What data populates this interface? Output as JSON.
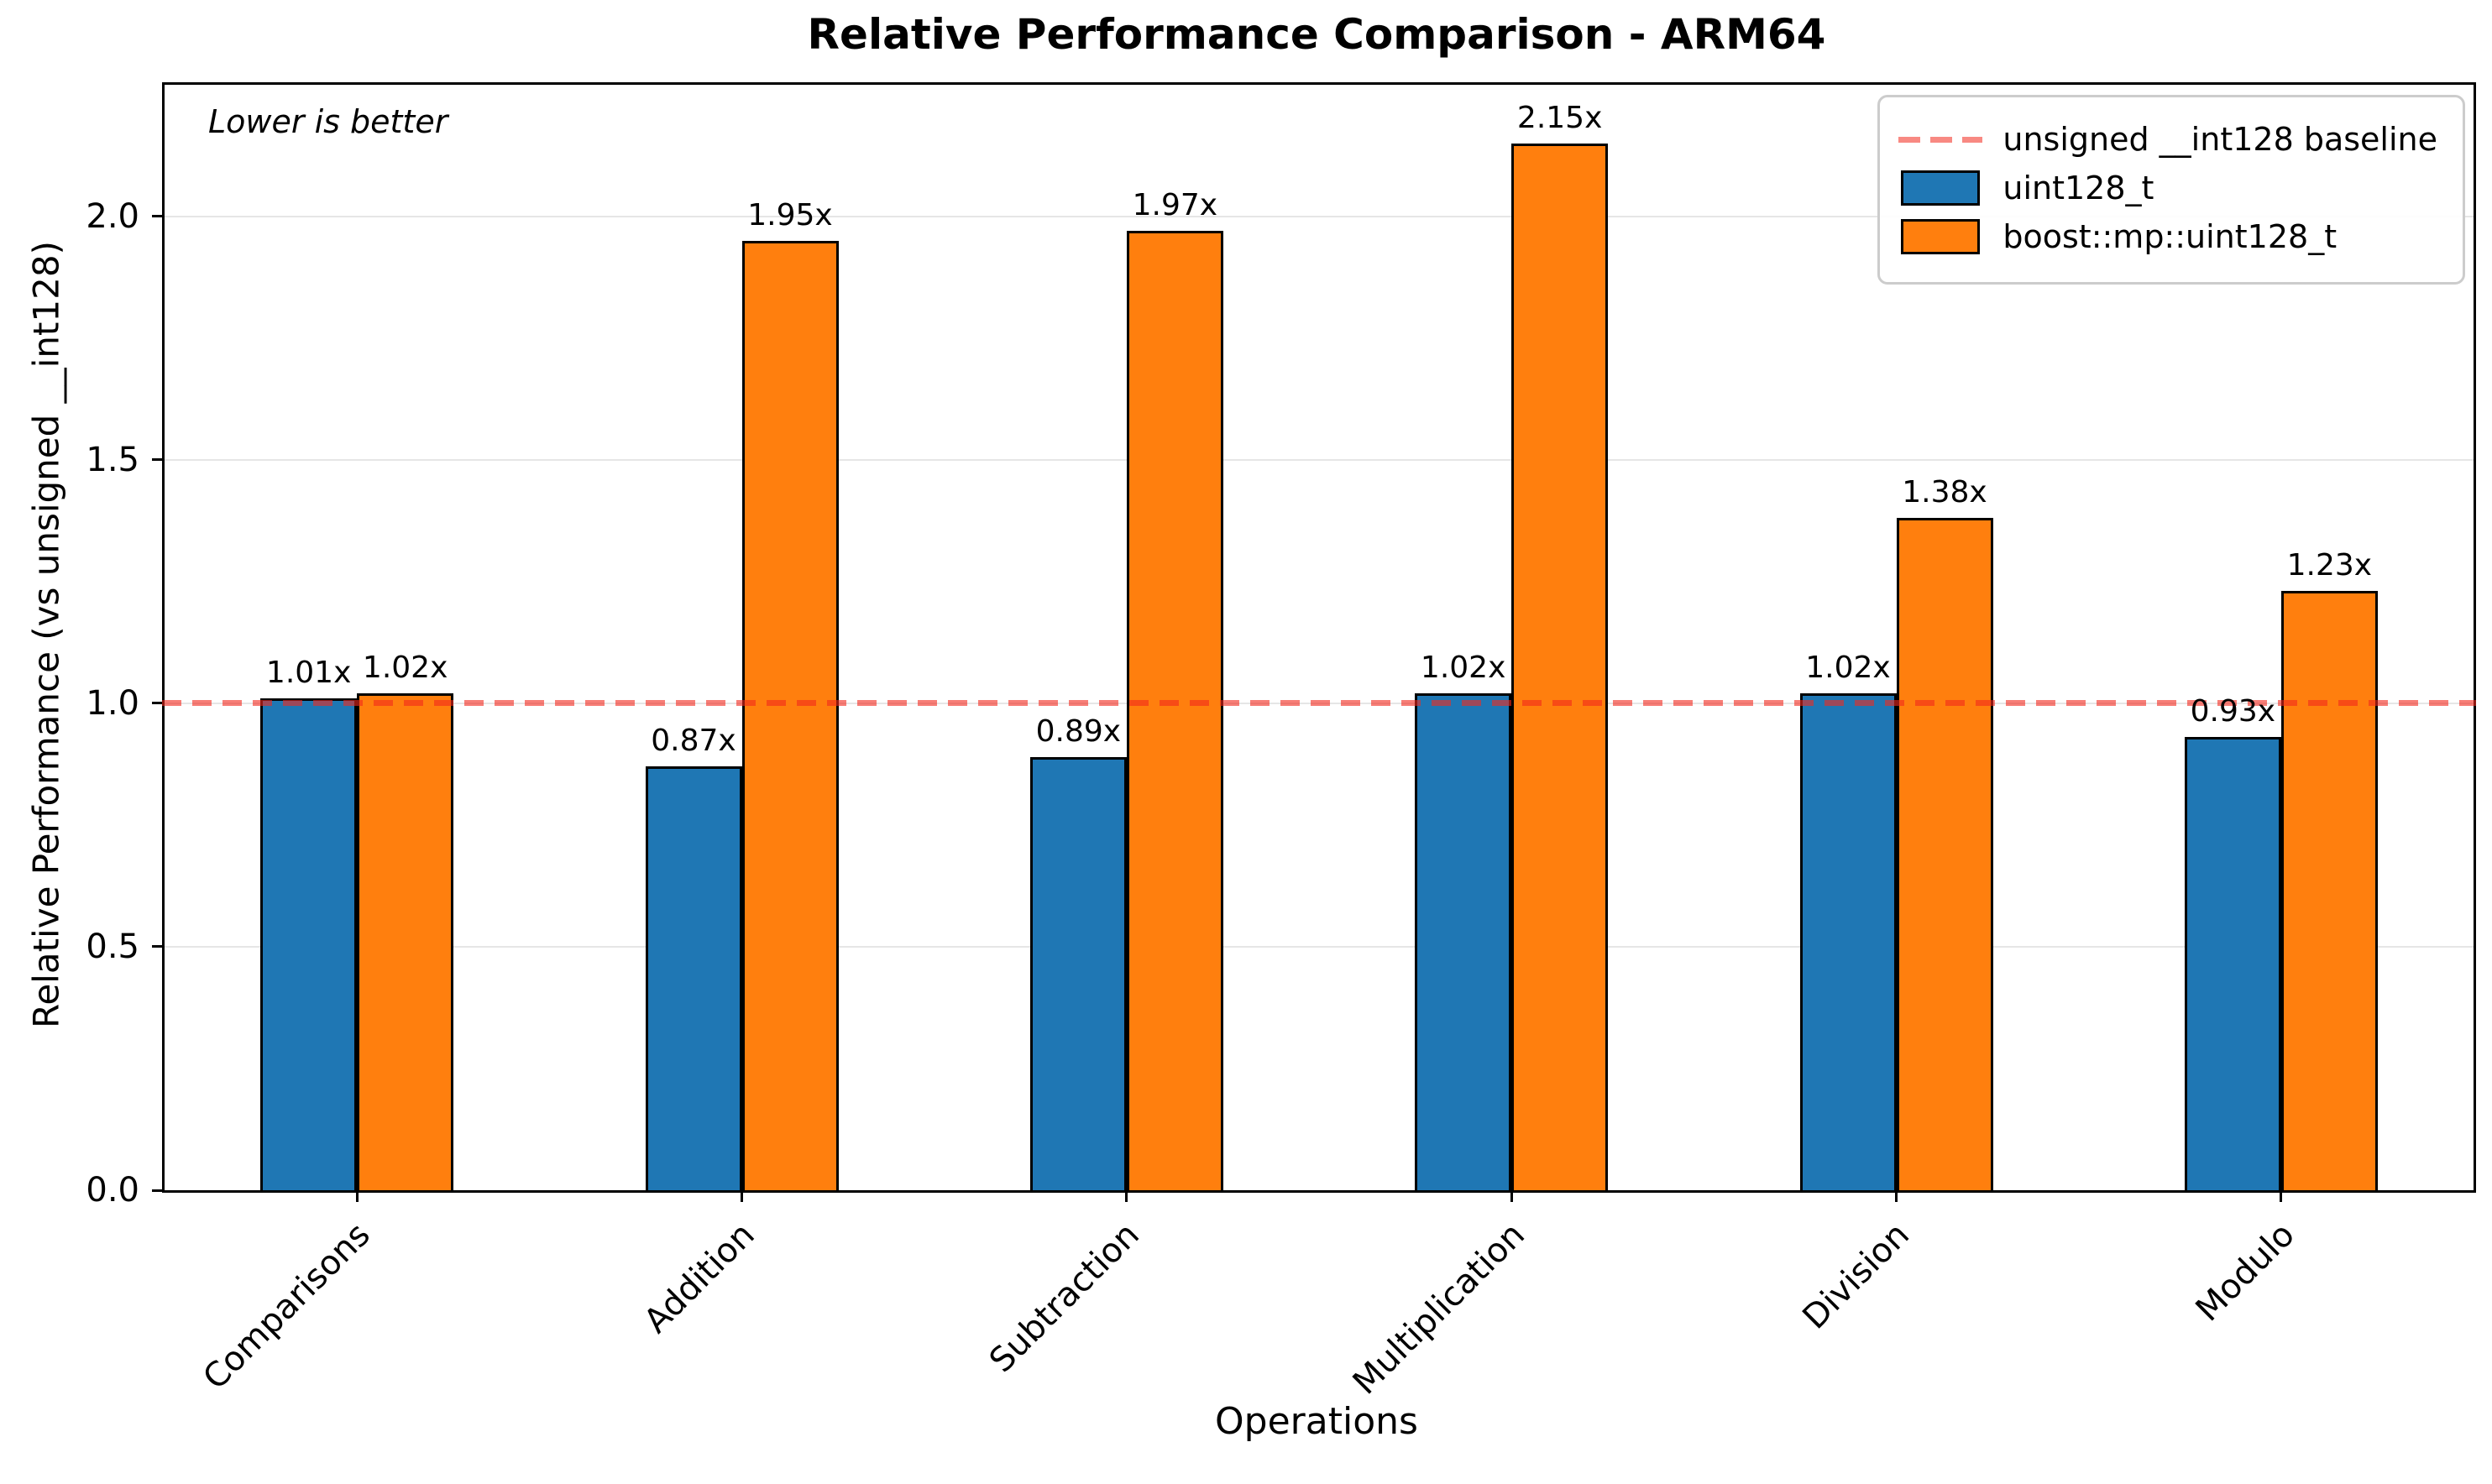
{
  "figure": {
    "title": "Relative Performance Comparison - ARM64",
    "annotation": "Lower is better",
    "xlabel": "Operations",
    "ylabel": "Relative Performance (vs unsigned __int128)"
  },
  "chart_data": {
    "type": "bar",
    "title": "Relative Performance Comparison - ARM64",
    "xlabel": "Operations",
    "ylabel": "Relative Performance (vs unsigned __int128)",
    "annotation": "Lower is better",
    "categories": [
      "Comparisons",
      "Addition",
      "Subtraction",
      "Multiplication",
      "Division",
      "Modulo"
    ],
    "series": [
      {
        "name": "uint128_t",
        "color": "#1f77b4",
        "values": [
          1.01,
          0.87,
          0.89,
          1.02,
          1.02,
          0.93
        ],
        "labels": [
          "1.01x",
          "0.87x",
          "0.89x",
          "1.02x",
          "1.02x",
          "0.93x"
        ]
      },
      {
        "name": "boost::mp::uint128_t",
        "color": "#ff7f0e",
        "values": [
          1.02,
          1.95,
          1.97,
          2.15,
          1.38,
          1.23
        ],
        "labels": [
          "1.02x",
          "1.95x",
          "1.97x",
          "2.15x",
          "1.38x",
          "1.23x"
        ]
      }
    ],
    "baseline": {
      "value": 1.0,
      "label": "unsigned __int128 baseline",
      "color": "#f4726b"
    },
    "yticks": [
      0.0,
      0.5,
      1.0,
      1.5,
      2.0
    ],
    "ytick_labels": [
      "0.0",
      "0.5",
      "1.0",
      "1.5",
      "2.0"
    ],
    "ylim": [
      0,
      2.27
    ],
    "grid": true,
    "legend_position": "upper right"
  }
}
